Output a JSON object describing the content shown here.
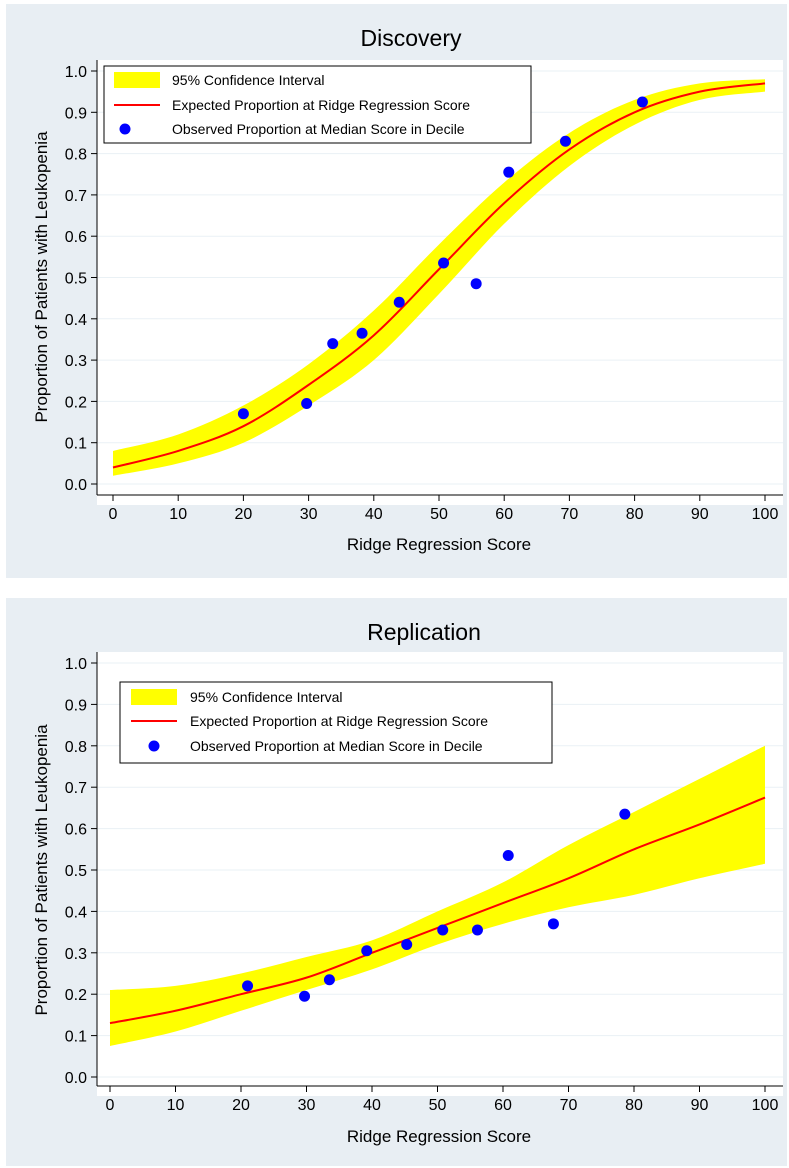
{
  "chart_data": [
    {
      "type": "line",
      "title": "Discovery",
      "xlabel": "Ridge Regression Score",
      "ylabel": "Proportion of Patients with Leukopenia",
      "xlim": [
        0,
        100
      ],
      "ylim": [
        0,
        1.0
      ],
      "x_ticks": [
        "0",
        "10",
        "20",
        "30",
        "40",
        "50",
        "60",
        "70",
        "80",
        "90",
        "100"
      ],
      "y_ticks": [
        "0.0",
        "0.1",
        "0.2",
        "0.3",
        "0.4",
        "0.5",
        "0.6",
        "0.7",
        "0.8",
        "0.9",
        "1.0"
      ],
      "grid": true,
      "legend_position": "top-left",
      "legend": [
        "95% Confidence Interval",
        "Expected Proportion at Ridge Regression Score",
        "Observed Proportion at Median Score in Decile"
      ],
      "curve": {
        "x": [
          0,
          10,
          20,
          30,
          40,
          50,
          60,
          70,
          80,
          90,
          100
        ],
        "expected": [
          0.04,
          0.08,
          0.14,
          0.24,
          0.36,
          0.52,
          0.68,
          0.81,
          0.9,
          0.95,
          0.97
        ],
        "ci_lower": [
          0.02,
          0.05,
          0.1,
          0.19,
          0.3,
          0.46,
          0.63,
          0.77,
          0.87,
          0.93,
          0.95
        ],
        "ci_upper": [
          0.08,
          0.12,
          0.19,
          0.29,
          0.42,
          0.58,
          0.73,
          0.85,
          0.93,
          0.97,
          0.98
        ]
      },
      "observed": {
        "x": [
          20,
          29.7,
          33.7,
          38.2,
          43.9,
          50.7,
          55.7,
          60.7,
          69.4,
          81.2
        ],
        "y": [
          0.17,
          0.195,
          0.34,
          0.365,
          0.44,
          0.535,
          0.485,
          0.755,
          0.83,
          0.925
        ]
      },
      "colors": {
        "ci_fill": "#ffff00",
        "expected_line": "#ff0000",
        "observed_point": "#0000ff"
      }
    },
    {
      "type": "line",
      "title": "Replication",
      "xlabel": "Ridge Regression Score",
      "ylabel": "Proportion of Patients with Leukopenia",
      "xlim": [
        0,
        100
      ],
      "ylim": [
        0,
        1.0
      ],
      "x_ticks": [
        "0",
        "10",
        "20",
        "30",
        "40",
        "50",
        "60",
        "70",
        "80",
        "90",
        "100"
      ],
      "y_ticks": [
        "0.0",
        "0.1",
        "0.2",
        "0.3",
        "0.4",
        "0.5",
        "0.6",
        "0.7",
        "0.8",
        "0.9",
        "1.0"
      ],
      "grid": true,
      "legend_position": "top-left",
      "legend": [
        "95% Confidence Interval",
        "Expected Proportion at Ridge Regression Score",
        "Observed Proportion at Median Score in Decile"
      ],
      "curve": {
        "x": [
          0,
          10,
          20,
          30,
          40,
          50,
          60,
          70,
          80,
          90,
          100
        ],
        "expected": [
          0.13,
          0.16,
          0.2,
          0.24,
          0.3,
          0.36,
          0.42,
          0.48,
          0.55,
          0.61,
          0.675
        ],
        "ci_lower": [
          0.075,
          0.11,
          0.16,
          0.21,
          0.26,
          0.32,
          0.37,
          0.41,
          0.44,
          0.48,
          0.515
        ],
        "ci_upper": [
          0.21,
          0.22,
          0.25,
          0.29,
          0.33,
          0.4,
          0.47,
          0.56,
          0.64,
          0.72,
          0.8
        ]
      },
      "observed": {
        "x": [
          21,
          29.7,
          33.5,
          39.2,
          45.3,
          50.8,
          56.1,
          60.8,
          67.7,
          78.6
        ],
        "y": [
          0.22,
          0.195,
          0.235,
          0.305,
          0.32,
          0.355,
          0.355,
          0.535,
          0.37,
          0.635
        ]
      },
      "colors": {
        "ci_fill": "#ffff00",
        "expected_line": "#ff0000",
        "observed_point": "#0000ff"
      }
    }
  ]
}
